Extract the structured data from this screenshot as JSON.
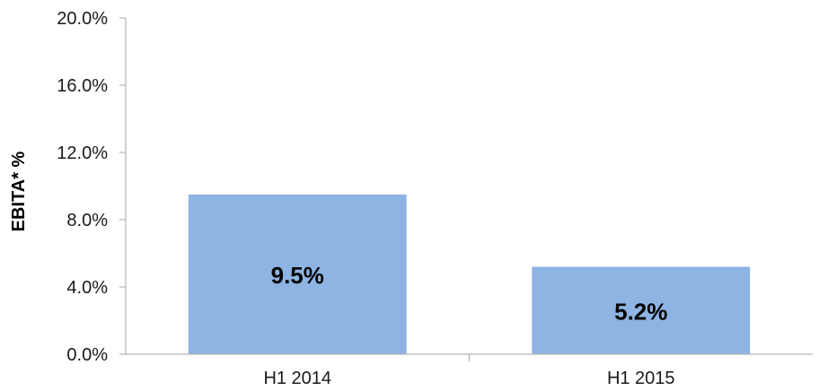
{
  "chart_data": {
    "type": "bar",
    "categories": [
      "H1 2014",
      "H1 2015"
    ],
    "values": [
      9.5,
      5.2
    ],
    "data_labels": [
      "9.5%",
      "5.2%"
    ],
    "title": "",
    "xlabel": "",
    "ylabel": "EBITA* %",
    "ylim": [
      0,
      20
    ],
    "yticks": [
      0,
      4,
      8,
      12,
      16,
      20
    ],
    "ytick_labels": [
      "0.0%",
      "4.0%",
      "8.0%",
      "12.0%",
      "16.0%",
      "20.0%"
    ],
    "grid": false,
    "legend": "none",
    "bar_color": "#8EB4E3"
  }
}
